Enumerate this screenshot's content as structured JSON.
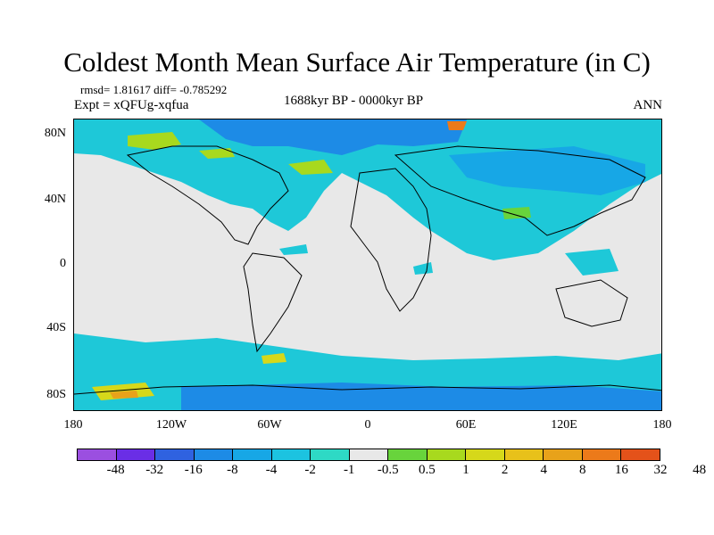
{
  "header": {
    "title": "Coldest Month Mean Surface Air Temperature (in C)",
    "stats": "rmsd= 1.81617 diff= -0.785292",
    "experiment": "Expt = xQFUg-xqfua",
    "period": "1688kyr BP - 0000kyr BP",
    "season": "ANN"
  },
  "axes": {
    "y_ticks": [
      "80N",
      "40N",
      "0",
      "40S",
      "80S"
    ],
    "x_ticks": [
      "180",
      "120W",
      "60W",
      "0",
      "60E",
      "120E",
      "180"
    ]
  },
  "colorbar": {
    "labels": [
      "-48",
      "-32",
      "-16",
      "-8",
      "-4",
      "-2",
      "-1",
      "-0.5",
      "0.5",
      "1",
      "2",
      "4",
      "8",
      "16",
      "32",
      "48"
    ],
    "colors": [
      "#9b4fe0",
      "#6a2ee6",
      "#2f62e0",
      "#1d8be6",
      "#17a7e6",
      "#1cc3e0",
      "#2ed9c5",
      "#e8e8e8",
      "#68d43c",
      "#a8d91e",
      "#d6d81a",
      "#e8c11a",
      "#e8a21a",
      "#ec7a1a",
      "#e4521a"
    ]
  },
  "map": {
    "background_color": "#e8e8e8",
    "dominant_fill": "#1ec8d8"
  }
}
